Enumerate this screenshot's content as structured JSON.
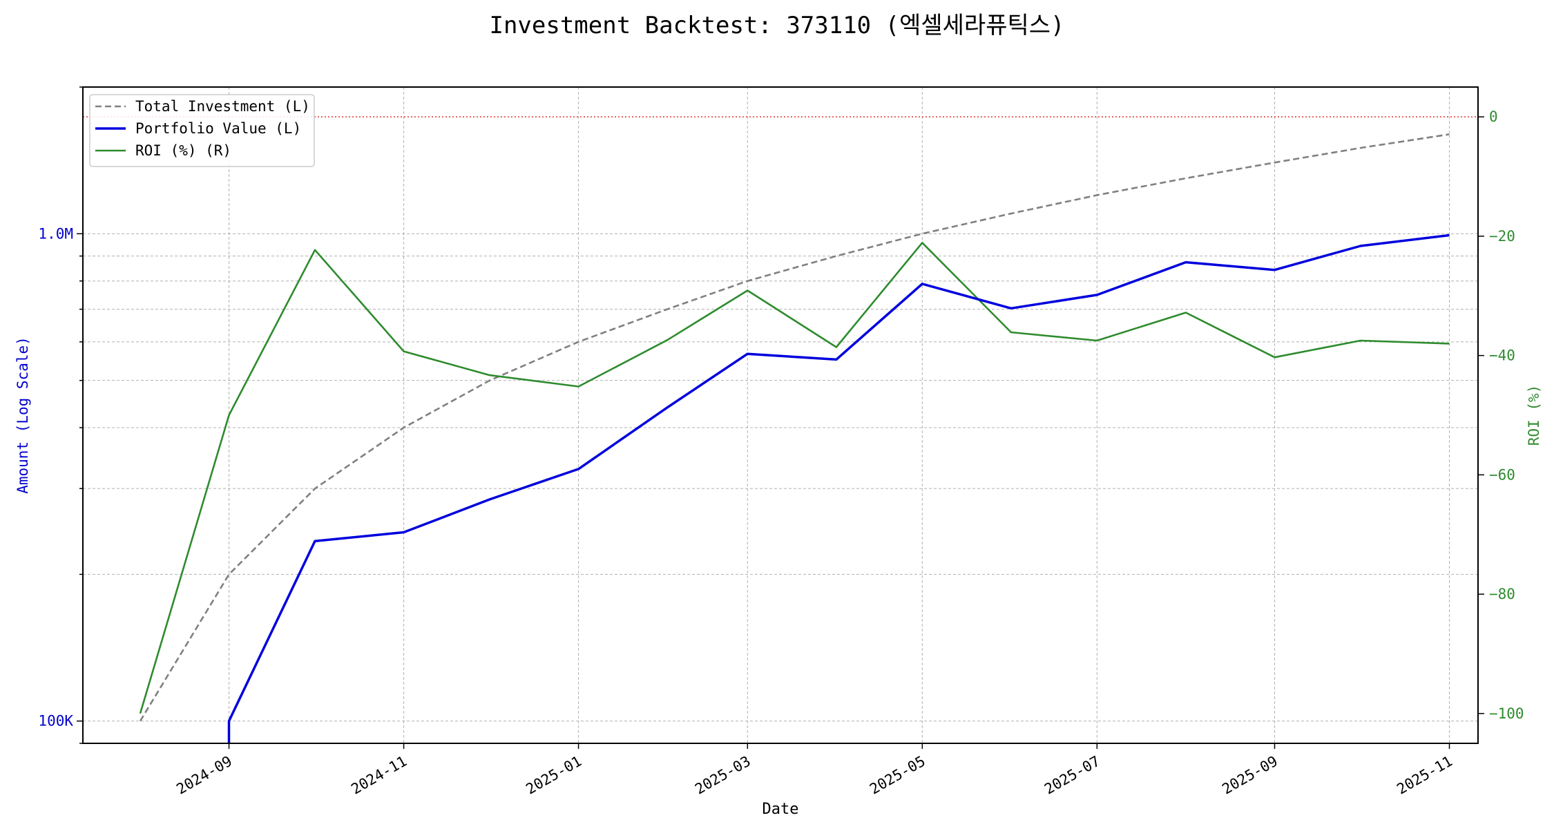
{
  "chart_data": {
    "type": "line",
    "title": "Investment Backtest: 373110 (엑셀세라퓨틱스)",
    "xlabel": "Date",
    "ylabel_left": "Amount (Log Scale)",
    "ylabel_right": "ROI (%)",
    "left_scale": "log",
    "left_ylim": [
      90000,
      2000000
    ],
    "right_ylim": [
      -105,
      5
    ],
    "xlim": [
      "2024-07-12",
      "2025-11-11"
    ],
    "x_ticks": [
      "2024-09",
      "2024-11",
      "2025-01",
      "2025-03",
      "2025-05",
      "2025-07",
      "2025-09",
      "2025-11"
    ],
    "x_tick_dates": [
      "2024-09-01",
      "2024-11-01",
      "2025-01-01",
      "2025-03-01",
      "2025-05-01",
      "2025-07-01",
      "2025-09-01",
      "2025-11-01"
    ],
    "left_ticks": [
      {
        "value": 100000,
        "label": "100K"
      },
      {
        "value": 1000000,
        "label": "1.0M"
      }
    ],
    "right_ticks": [
      0,
      -20,
      -40,
      -60,
      -80,
      -100
    ],
    "grid": true,
    "legend_position": "top-left",
    "reference_line": {
      "axis": "right",
      "value": 0,
      "color": "#e03030"
    },
    "series": [
      {
        "name": "Total Investment (L)",
        "axis": "left",
        "color": "#808080",
        "dashed": true,
        "x": [
          "2024-08-01",
          "2024-09-01",
          "2024-10-01",
          "2024-11-01",
          "2024-12-01",
          "2025-01-01",
          "2025-02-01",
          "2025-03-01",
          "2025-04-01",
          "2025-05-01",
          "2025-06-01",
          "2025-07-01",
          "2025-08-01",
          "2025-09-01",
          "2025-10-01",
          "2025-11-01"
        ],
        "y": [
          100000,
          200000,
          300000,
          400000,
          500000,
          600000,
          700000,
          800000,
          900000,
          1000000,
          1100000,
          1200000,
          1300000,
          1400000,
          1500000,
          1600000
        ]
      },
      {
        "name": "Portfolio Value (L)",
        "axis": "left",
        "color": "#0000dd",
        "dashed": false,
        "x": [
          "2024-09-01",
          "2024-09-01",
          "2024-10-01",
          "2024-11-01",
          "2024-12-01",
          "2025-01-01",
          "2025-02-01",
          "2025-03-01",
          "2025-04-01",
          "2025-05-01",
          "2025-06-01",
          "2025-07-01",
          "2025-08-01",
          "2025-09-01",
          "2025-10-01",
          "2025-11-01"
        ],
        "y": [
          85000,
          100000,
          234000,
          244000,
          285000,
          329000,
          440000,
          567000,
          552000,
          789000,
          703000,
          749000,
          874000,
          843000,
          944000,
          993000
        ]
      },
      {
        "name": "ROI (%) (R)",
        "axis": "right",
        "color": "#2e8b2e",
        "dashed": false,
        "x": [
          "2024-08-01",
          "2024-09-01",
          "2024-10-01",
          "2024-11-01",
          "2024-12-01",
          "2025-01-01",
          "2025-02-01",
          "2025-03-01",
          "2025-04-01",
          "2025-05-01",
          "2025-06-01",
          "2025-07-01",
          "2025-08-01",
          "2025-09-01",
          "2025-10-01",
          "2025-11-01"
        ],
        "y": [
          -100,
          -50,
          -22.3,
          -39.3,
          -43.3,
          -45.2,
          -37.4,
          -29.1,
          -38.6,
          -21.1,
          -36.1,
          -37.5,
          -32.8,
          -40.3,
          -37.5,
          -38
        ]
      }
    ]
  }
}
